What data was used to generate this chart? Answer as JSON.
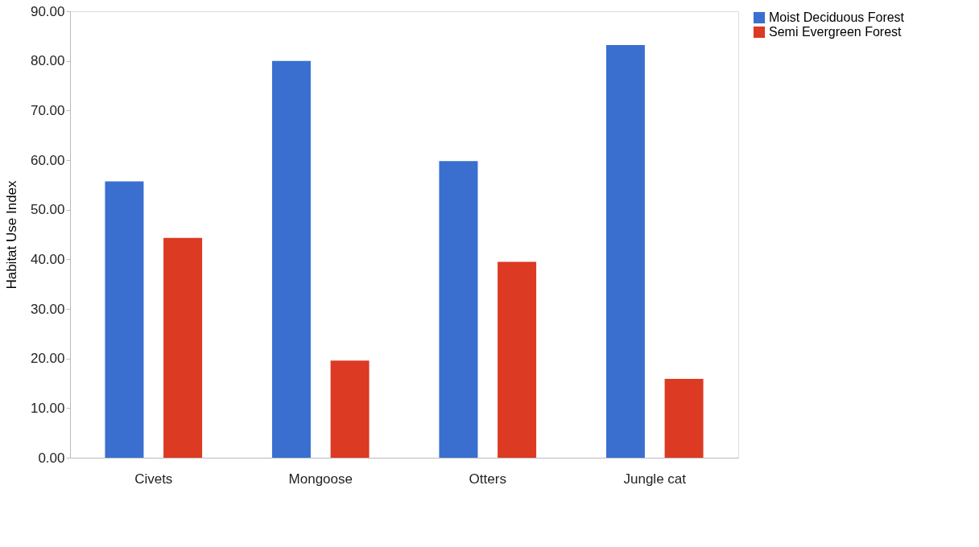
{
  "chart_data": {
    "type": "bar",
    "ylabel": "Habitat Use Index",
    "categories": [
      "Civets",
      "Mongoose",
      "Otters",
      "Jungle cat"
    ],
    "series": [
      {
        "name": "Moist Deciduous Forest",
        "color": "#3a6fd0",
        "values": [
          55.7,
          80.0,
          59.8,
          83.2
        ]
      },
      {
        "name": "Semi Evergreen Forest",
        "color": "#dc3a23",
        "values": [
          44.3,
          19.6,
          39.5,
          15.9
        ]
      }
    ],
    "ylim": [
      0,
      90
    ],
    "yticks": [
      {
        "value": 0,
        "label": "0.00"
      },
      {
        "value": 10,
        "label": "10.00"
      },
      {
        "value": 20,
        "label": "20.00"
      },
      {
        "value": 30,
        "label": "30.00"
      },
      {
        "value": 40,
        "label": "40.00"
      },
      {
        "value": 50,
        "label": "50.00"
      },
      {
        "value": 60,
        "label": "60.00"
      },
      {
        "value": 70,
        "label": "70.00"
      },
      {
        "value": 80,
        "label": "80.00"
      },
      {
        "value": 90,
        "label": "90.00"
      }
    ],
    "grid": false,
    "legend": "right"
  }
}
